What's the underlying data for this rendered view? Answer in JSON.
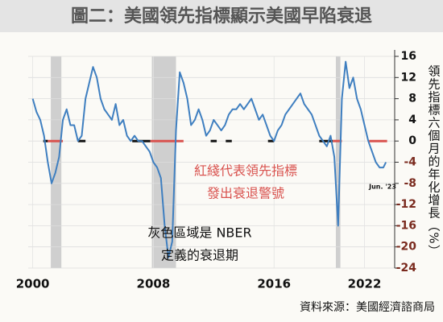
{
  "chart_data": {
    "type": "line",
    "title": "圖二：美國領先指標顯示美國早陷衰退",
    "y_label": "領先指標六個月的年化增長（%）",
    "source": "資料來源：美國經濟諮商局",
    "annotations": [
      "紅綫代表領先指標",
      "發出衰退警號",
      "灰色區域是 NBER",
      "定義的衰退期",
      "Jun. '23"
    ],
    "xlim": [
      1999.7,
      2024
    ],
    "xticks": [
      2000,
      2008,
      2016,
      2022
    ],
    "ylim": [
      -24,
      16
    ],
    "yticks": [
      16,
      12,
      8,
      4,
      0,
      -4,
      -8,
      -12,
      -16,
      -20,
      -24
    ],
    "grid": true,
    "recessions": [
      [
        2001.2,
        2001.9
      ],
      [
        2007.9,
        2009.5
      ],
      [
        2020.1,
        2020.4
      ]
    ],
    "recession_color": "#cfcfcf",
    "signals": [
      {
        "start": 2000.7,
        "end": 2001.0,
        "color": "#111111"
      },
      {
        "start": 2001.0,
        "end": 2002.0,
        "color": "#d9534f"
      },
      {
        "start": 2003.0,
        "end": 2003.5,
        "color": "#111111"
      },
      {
        "start": 2006.6,
        "end": 2007.8,
        "color": "#111111"
      },
      {
        "start": 2007.8,
        "end": 2010.0,
        "color": "#d9534f"
      },
      {
        "start": 2011.8,
        "end": 2012.2,
        "color": "#111111"
      },
      {
        "start": 2012.8,
        "end": 2013.2,
        "color": "#111111"
      },
      {
        "start": 2015.6,
        "end": 2016.0,
        "color": "#111111"
      },
      {
        "start": 2019.0,
        "end": 2019.9,
        "color": "#111111"
      },
      {
        "start": 2019.9,
        "end": 2020.5,
        "color": "#d9534f"
      },
      {
        "start": 2022.3,
        "end": 2023.5,
        "color": "#d9534f"
      }
    ],
    "x": [
      2000.0,
      2000.25,
      2000.5,
      2000.75,
      2001.0,
      2001.25,
      2001.5,
      2001.75,
      2002.0,
      2002.25,
      2002.5,
      2002.75,
      2003.0,
      2003.25,
      2003.5,
      2003.75,
      2004.0,
      2004.25,
      2004.5,
      2004.75,
      2005.0,
      2005.25,
      2005.5,
      2005.75,
      2006.0,
      2006.25,
      2006.5,
      2006.75,
      2007.0,
      2007.25,
      2007.5,
      2007.75,
      2008.0,
      2008.25,
      2008.5,
      2008.75,
      2009.0,
      2009.25,
      2009.5,
      2009.75,
      2010.0,
      2010.25,
      2010.5,
      2010.75,
      2011.0,
      2011.25,
      2011.5,
      2011.75,
      2012.0,
      2012.25,
      2012.5,
      2012.75,
      2013.0,
      2013.25,
      2013.5,
      2013.75,
      2014.0,
      2014.25,
      2014.5,
      2014.75,
      2015.0,
      2015.25,
      2015.5,
      2015.75,
      2016.0,
      2016.25,
      2016.5,
      2016.75,
      2017.0,
      2017.25,
      2017.5,
      2017.75,
      2018.0,
      2018.25,
      2018.5,
      2018.75,
      2019.0,
      2019.25,
      2019.5,
      2019.75,
      2020.0,
      2020.25,
      2020.5,
      2020.75,
      2021.0,
      2021.25,
      2021.5,
      2021.75,
      2022.0,
      2022.25,
      2022.5,
      2022.75,
      2023.0,
      2023.25,
      2023.42
    ],
    "series": [
      {
        "color": "#3f7fc0",
        "values": [
          8,
          5.5,
          4,
          1,
          -4,
          -8,
          -6,
          -3,
          4,
          6,
          3,
          3,
          0,
          1,
          8,
          11,
          14,
          12,
          8,
          6,
          5,
          4,
          7,
          3,
          4,
          1,
          0,
          1,
          0,
          0,
          -1,
          -2,
          -4,
          -5,
          -7,
          -16,
          -22,
          -19,
          2,
          13,
          11,
          8,
          3,
          4,
          6,
          4,
          1,
          2,
          4,
          3,
          2,
          3,
          5,
          6,
          6,
          7,
          6,
          7,
          8,
          6,
          4,
          5,
          3,
          1,
          0,
          2,
          3,
          5,
          6,
          7,
          8,
          9,
          7,
          6,
          5,
          3,
          1,
          0,
          -1,
          1,
          -3,
          -16,
          8,
          15,
          10,
          12,
          8,
          6,
          3,
          0,
          -2,
          -4,
          -5,
          -5,
          -4
        ]
      }
    ]
  }
}
